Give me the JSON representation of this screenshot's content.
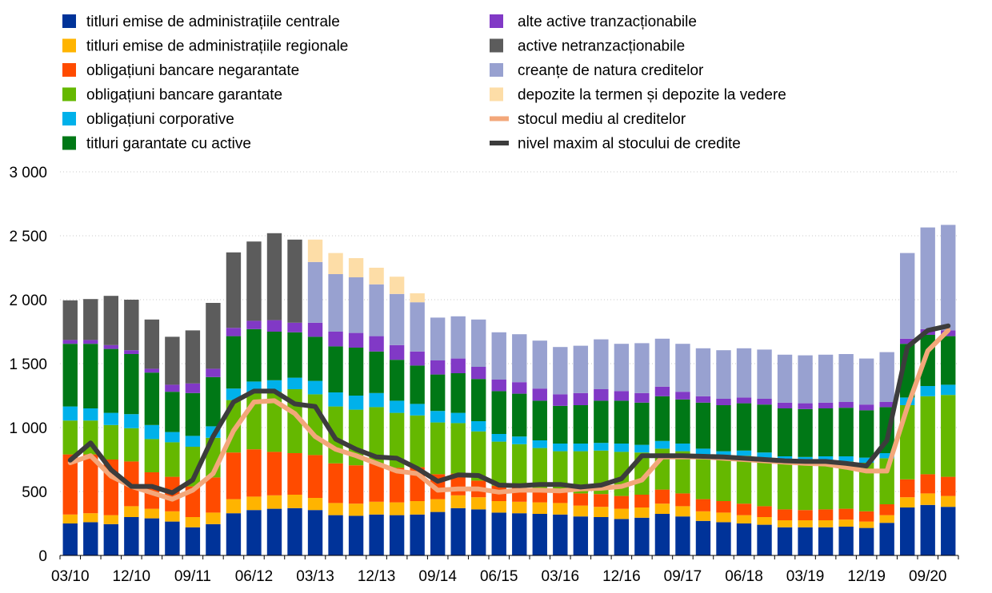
{
  "chart_data": {
    "type": "bar",
    "stacked": true,
    "ylim": [
      0,
      3000
    ],
    "yticks": [
      "0",
      "500",
      "1 000",
      "1 500",
      "2 000",
      "2 500",
      "3 000"
    ],
    "ytick_values": [
      0,
      500,
      1000,
      1500,
      2000,
      2500,
      3000
    ],
    "xtick_labels": [
      "03/10",
      "12/10",
      "09/11",
      "06/12",
      "03/13",
      "12/13",
      "09/14",
      "06/15",
      "03/16",
      "12/16",
      "09/17",
      "06/18",
      "03/19",
      "12/19",
      "09/20"
    ],
    "xtick_indices": [
      0,
      3,
      6,
      9,
      12,
      15,
      18,
      21,
      24,
      27,
      30,
      33,
      36,
      39,
      42
    ],
    "grid": true,
    "legend_position": "top",
    "colors": {
      "central": "#003399",
      "regional": "#FFB400",
      "unsecured": "#FF4B00",
      "covered": "#65B800",
      "corporate": "#00B1EA",
      "abs": "#007816",
      "other_marketable": "#8139C6",
      "non_marketable": "#5C5C5C",
      "credit_claims": "#98A1D0",
      "deposits": "#FDDDA7",
      "avg_credit": "#F3A77A",
      "peak_credit": "#3C3C3C"
    },
    "legend": [
      {
        "key": "central",
        "label": "titluri emise de administrațiile centrale",
        "kind": "box"
      },
      {
        "key": "regional",
        "label": "titluri emise de administrațiile regionale",
        "kind": "box"
      },
      {
        "key": "unsecured",
        "label": "obligațiuni bancare negarantate",
        "kind": "box"
      },
      {
        "key": "covered",
        "label": "obligațiuni bancare garantate",
        "kind": "box"
      },
      {
        "key": "corporate",
        "label": "obligațiuni corporative",
        "kind": "box"
      },
      {
        "key": "abs",
        "label": "titluri garantate cu active",
        "kind": "box"
      },
      {
        "key": "other_marketable",
        "label": "alte active tranzacționabile",
        "kind": "box"
      },
      {
        "key": "non_marketable",
        "label": "active netranzacționabile",
        "kind": "box"
      },
      {
        "key": "credit_claims",
        "label": "creanțe de natura creditelor",
        "kind": "box"
      },
      {
        "key": "deposits",
        "label": "depozite la termen și depozite la vedere",
        "kind": "box"
      },
      {
        "key": "avg_credit",
        "label": "stocul mediu al creditelor",
        "kind": "line"
      },
      {
        "key": "peak_credit",
        "label": "nivel maxim al stocului de credite",
        "kind": "line"
      }
    ],
    "categories": [
      "Q1 2010",
      "Q2 2010",
      "Q3 2010",
      "Q4 2010",
      "Q1 2011",
      "Q2 2011",
      "Q3 2011",
      "Q4 2011",
      "Q1 2012",
      "Q2 2012",
      "Q3 2012",
      "Q4 2012",
      "Q1 2013",
      "Q2 2013",
      "Q3 2013",
      "Q4 2013",
      "Q1 2014",
      "Q2 2014",
      "Q3 2014",
      "Q4 2014",
      "Q1 2015",
      "Q2 2015",
      "Q3 2015",
      "Q4 2015",
      "Q1 2016",
      "Q2 2016",
      "Q3 2016",
      "Q4 2016",
      "Q1 2017",
      "Q2 2017",
      "Q3 2017",
      "Q4 2017",
      "Q1 2018",
      "Q2 2018",
      "Q3 2018",
      "Q4 2018",
      "Q1 2019",
      "Q2 2019",
      "Q3 2019",
      "Q4 2019",
      "Q1 2020",
      "Q2 2020",
      "Q3 2020",
      "Q4 2020"
    ],
    "series": [
      {
        "key": "central",
        "values": [
          250,
          260,
          245,
          300,
          290,
          265,
          220,
          245,
          330,
          355,
          365,
          370,
          355,
          315,
          310,
          320,
          315,
          320,
          340,
          370,
          360,
          335,
          330,
          325,
          320,
          305,
          300,
          285,
          295,
          325,
          305,
          270,
          260,
          250,
          240,
          220,
          220,
          220,
          225,
          215,
          255,
          375,
          395,
          380
        ]
      },
      {
        "key": "regional",
        "values": [
          70,
          70,
          70,
          85,
          75,
          80,
          80,
          90,
          110,
          105,
          105,
          105,
          95,
          95,
          95,
          100,
          100,
          105,
          100,
          100,
          95,
          90,
          90,
          90,
          90,
          85,
          80,
          80,
          80,
          80,
          80,
          75,
          75,
          65,
          60,
          55,
          55,
          55,
          55,
          50,
          60,
          80,
          90,
          85
        ]
      },
      {
        "key": "unsecured",
        "values": [
          470,
          460,
          435,
          350,
          285,
          270,
          240,
          275,
          365,
          370,
          340,
          325,
          335,
          310,
          300,
          300,
          270,
          265,
          195,
          170,
          130,
          120,
          110,
          100,
          90,
          95,
          100,
          100,
          100,
          110,
          100,
          95,
          90,
          90,
          85,
          85,
          80,
          85,
          85,
          80,
          85,
          140,
          150,
          150
        ]
      },
      {
        "key": "covered",
        "values": [
          265,
          265,
          270,
          260,
          260,
          270,
          310,
          310,
          410,
          440,
          470,
          500,
          475,
          445,
          435,
          440,
          430,
          405,
          405,
          395,
          385,
          345,
          340,
          325,
          315,
          330,
          340,
          345,
          330,
          320,
          330,
          335,
          340,
          375,
          380,
          380,
          380,
          380,
          370,
          380,
          360,
          580,
          610,
          640
        ]
      },
      {
        "key": "corporate",
        "values": [
          110,
          95,
          95,
          110,
          110,
          80,
          85,
          90,
          90,
          90,
          90,
          90,
          105,
          110,
          110,
          110,
          95,
          90,
          90,
          80,
          80,
          60,
          60,
          60,
          60,
          60,
          60,
          65,
          60,
          60,
          60,
          60,
          50,
          40,
          40,
          35,
          35,
          35,
          40,
          40,
          40,
          60,
          80,
          80
        ]
      },
      {
        "key": "abs",
        "values": [
          490,
          505,
          500,
          470,
          410,
          315,
          335,
          385,
          410,
          410,
          380,
          355,
          345,
          360,
          375,
          325,
          320,
          300,
          285,
          310,
          330,
          335,
          335,
          310,
          295,
          300,
          330,
          335,
          330,
          350,
          345,
          360,
          360,
          370,
          375,
          375,
          375,
          375,
          380,
          370,
          360,
          420,
          400,
          380
        ]
      },
      {
        "key": "other_marketable",
        "values": [
          30,
          30,
          30,
          30,
          30,
          55,
          75,
          65,
          65,
          65,
          90,
          75,
          110,
          115,
          115,
          120,
          115,
          110,
          110,
          115,
          95,
          90,
          90,
          95,
          90,
          95,
          90,
          75,
          75,
          75,
          60,
          50,
          50,
          45,
          45,
          45,
          45,
          45,
          45,
          45,
          40,
          40,
          45,
          45
        ]
      },
      {
        "key": "non_marketable",
        "values": [
          310,
          320,
          385,
          395,
          385,
          375,
          415,
          515,
          590,
          620,
          680,
          650,
          0,
          0,
          0,
          0,
          0,
          0,
          0,
          0,
          0,
          0,
          0,
          0,
          0,
          0,
          0,
          0,
          0,
          0,
          0,
          0,
          0,
          0,
          0,
          0,
          0,
          0,
          0,
          0,
          0,
          0,
          0,
          0
        ]
      },
      {
        "key": "credit_claims",
        "values": [
          0,
          0,
          0,
          0,
          0,
          0,
          0,
          0,
          0,
          0,
          0,
          0,
          475,
          450,
          435,
          405,
          400,
          385,
          335,
          330,
          370,
          370,
          375,
          375,
          370,
          370,
          390,
          370,
          390,
          375,
          375,
          375,
          380,
          385,
          385,
          375,
          375,
          375,
          375,
          360,
          390,
          670,
          795,
          825
        ]
      },
      {
        "key": "deposits",
        "values": [
          0,
          0,
          0,
          0,
          0,
          0,
          0,
          0,
          0,
          0,
          0,
          0,
          175,
          165,
          150,
          130,
          135,
          70,
          0,
          0,
          0,
          0,
          0,
          0,
          0,
          0,
          0,
          0,
          0,
          0,
          0,
          0,
          0,
          0,
          0,
          0,
          0,
          0,
          0,
          0,
          0,
          0,
          0,
          0
        ]
      }
    ],
    "lines": [
      {
        "key": "avg_credit",
        "values": [
          725,
          780,
          620,
          540,
          490,
          440,
          510,
          640,
          975,
          1200,
          1210,
          1110,
          930,
          830,
          780,
          720,
          660,
          640,
          510,
          520,
          520,
          495,
          510,
          510,
          505,
          520,
          525,
          540,
          590,
          770,
          770,
          770,
          760,
          750,
          740,
          730,
          720,
          715,
          690,
          660,
          660,
          1160,
          1600,
          1760
        ]
      },
      {
        "key": "peak_credit",
        "values": [
          745,
          880,
          670,
          540,
          540,
          490,
          590,
          930,
          1200,
          1285,
          1285,
          1185,
          1165,
          910,
          830,
          770,
          760,
          680,
          580,
          630,
          625,
          550,
          545,
          555,
          555,
          535,
          550,
          600,
          780,
          780,
          780,
          775,
          770,
          760,
          750,
          740,
          735,
          735,
          720,
          700,
          900,
          1630,
          1760,
          1795
        ]
      }
    ]
  }
}
